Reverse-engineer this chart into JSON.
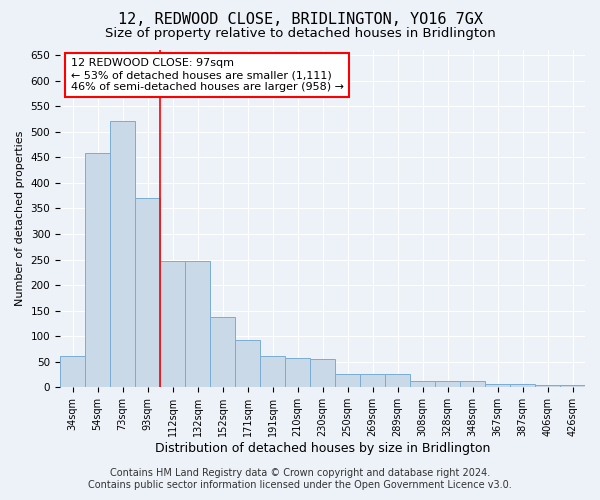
{
  "title": "12, REDWOOD CLOSE, BRIDLINGTON, YO16 7GX",
  "subtitle": "Size of property relative to detached houses in Bridlington",
  "xlabel": "Distribution of detached houses by size in Bridlington",
  "ylabel": "Number of detached properties",
  "categories": [
    "34sqm",
    "54sqm",
    "73sqm",
    "93sqm",
    "112sqm",
    "132sqm",
    "152sqm",
    "171sqm",
    "191sqm",
    "210sqm",
    "230sqm",
    "250sqm",
    "269sqm",
    "289sqm",
    "308sqm",
    "328sqm",
    "348sqm",
    "367sqm",
    "387sqm",
    "406sqm",
    "426sqm"
  ],
  "values": [
    62,
    458,
    522,
    370,
    248,
    248,
    138,
    92,
    62,
    58,
    55,
    26,
    26,
    26,
    12,
    12,
    12,
    7,
    7,
    5,
    4
  ],
  "bar_color": "#c9d9e8",
  "bar_edge_color": "#7aadd4",
  "vline_x": 3.5,
  "annotation_text": "12 REDWOOD CLOSE: 97sqm\n← 53% of detached houses are smaller (1,111)\n46% of semi-detached houses are larger (958) →",
  "annotation_box_color": "white",
  "annotation_box_edge_color": "red",
  "vline_color": "red",
  "ylim": [
    0,
    660
  ],
  "yticks": [
    0,
    50,
    100,
    150,
    200,
    250,
    300,
    350,
    400,
    450,
    500,
    550,
    600,
    650
  ],
  "footer_line1": "Contains HM Land Registry data © Crown copyright and database right 2024.",
  "footer_line2": "Contains public sector information licensed under the Open Government Licence v3.0.",
  "bg_color": "#edf2f9",
  "plot_bg_color": "#edf2f9",
  "grid_color": "white",
  "title_fontsize": 11,
  "subtitle_fontsize": 9.5,
  "xlabel_fontsize": 9,
  "ylabel_fontsize": 8,
  "footer_fontsize": 7,
  "annotation_fontsize": 8
}
